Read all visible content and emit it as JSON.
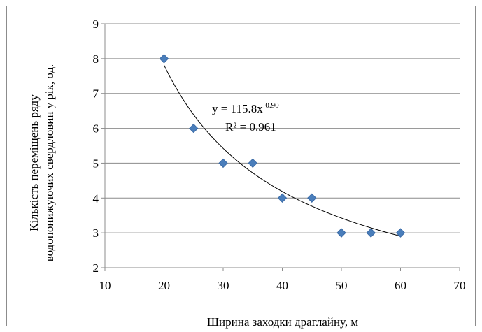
{
  "chart_data": {
    "type": "scatter",
    "xlabel": "Ширина заходки драглайну, м",
    "ylabel_line1": "Кількість переміщень ряду",
    "ylabel_line2": "водопонижуючих свердловин у рік, од.",
    "xlim": [
      10,
      70
    ],
    "ylim": [
      2,
      9
    ],
    "x_ticks": [
      10,
      20,
      30,
      40,
      50,
      60,
      70
    ],
    "y_ticks": [
      2,
      3,
      4,
      5,
      6,
      7,
      8,
      9
    ],
    "grid": "horizontal",
    "points": [
      {
        "x": 20,
        "y": 8
      },
      {
        "x": 25,
        "y": 6
      },
      {
        "x": 30,
        "y": 5
      },
      {
        "x": 35,
        "y": 5
      },
      {
        "x": 40,
        "y": 4
      },
      {
        "x": 45,
        "y": 4
      },
      {
        "x": 50,
        "y": 3
      },
      {
        "x": 55,
        "y": 3
      },
      {
        "x": 60,
        "y": 3
      }
    ],
    "trendline": {
      "type": "power",
      "coefficient": 115.8,
      "exponent": -0.9,
      "x_range": [
        20,
        60
      ],
      "equation_base": "y = 115.8x",
      "equation_exp": "-0.90",
      "r_squared_label": "R² = 0.961"
    },
    "colors": {
      "marker": "#4a7ebb",
      "marker_stroke": "#3a6aa5",
      "gridline": "#8c8c8c",
      "axis": "#8c8c8c",
      "trendline": "#000000"
    }
  }
}
